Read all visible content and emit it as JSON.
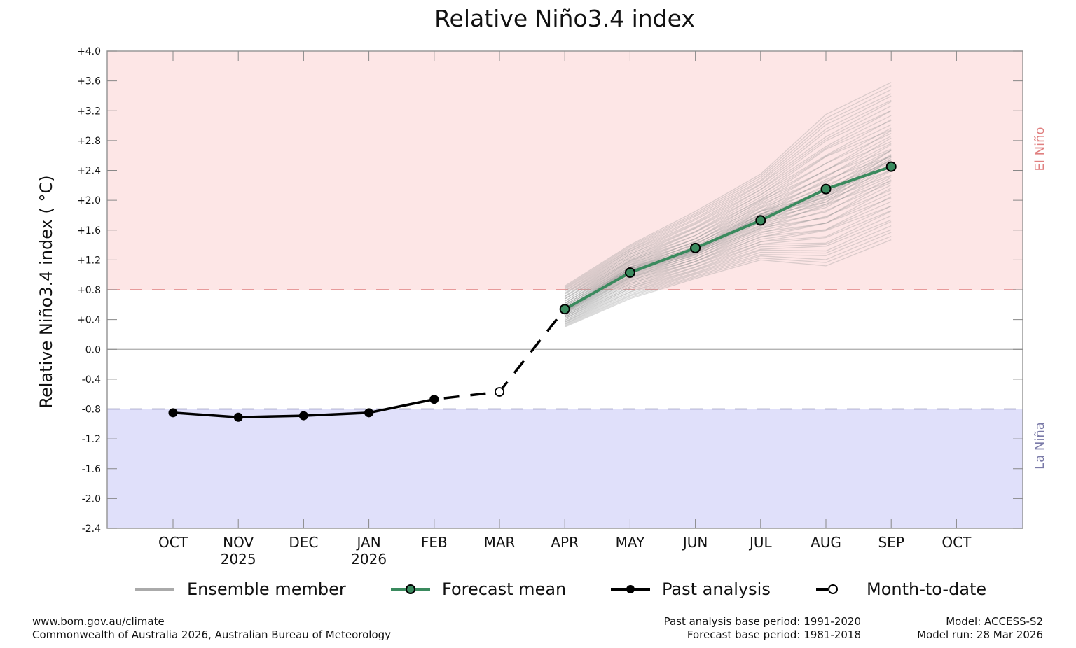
{
  "chart_data": {
    "type": "line",
    "title": "Relative Niño3.4 index",
    "ylabel": "Relative Niño3.4 index ( °C)",
    "ylim": [
      -2.4,
      4.0
    ],
    "yticks": [
      "+4.0",
      "+3.6",
      "+3.2",
      "+2.8",
      "+2.4",
      "+2.0",
      "+1.6",
      "+1.2",
      "+0.8",
      "+0.4",
      "0.0",
      "-0.4",
      "-0.8",
      "-1.2",
      "-1.6",
      "-2.0",
      "-2.4"
    ],
    "ytick_values": [
      4.0,
      3.6,
      3.2,
      2.8,
      2.4,
      2.0,
      1.6,
      1.2,
      0.8,
      0.4,
      0.0,
      -0.4,
      -0.8,
      -1.2,
      -1.6,
      -2.0,
      -2.4
    ],
    "categories": [
      "OCT",
      "NOV",
      "DEC",
      "JAN",
      "FEB",
      "MAR",
      "APR",
      "MAY",
      "JUN",
      "JUL",
      "AUG",
      "SEP",
      "OCT"
    ],
    "year_labels": {
      "NOV": "2025",
      "JAN": "2026"
    },
    "thresholds": {
      "el_nino": {
        "value": 0.8,
        "label": "El Niño",
        "color": "#e08080",
        "fill": "#fde6e6"
      },
      "la_nina": {
        "value": -0.8,
        "label": "La Niña",
        "color": "#7a7aa8",
        "fill": "#e0e0fa"
      }
    },
    "series": [
      {
        "name": "Past analysis",
        "color": "#000000",
        "x": [
          "OCT",
          "NOV",
          "DEC",
          "JAN",
          "FEB"
        ],
        "values": [
          -0.85,
          -0.91,
          -0.89,
          -0.85,
          -0.67
        ]
      },
      {
        "name": "Month-to-date",
        "color": "#000000",
        "x": [
          "MAR"
        ],
        "values": [
          -0.57
        ]
      },
      {
        "name": "Forecast mean",
        "color": "#3a8a5e",
        "x": [
          "APR",
          "MAY",
          "JUN",
          "JUL",
          "AUG",
          "SEP"
        ],
        "values": [
          0.54,
          1.03,
          1.36,
          1.73,
          2.15,
          2.45
        ]
      },
      {
        "name": "Ensemble member",
        "color": "#aaaaaa",
        "x": [
          "APR",
          "MAY",
          "JUN",
          "JUL",
          "AUG",
          "SEP"
        ],
        "min": [
          0.3,
          0.68,
          0.95,
          1.2,
          1.12,
          1.47
        ],
        "max": [
          0.85,
          1.4,
          1.85,
          2.35,
          3.15,
          3.58
        ]
      }
    ],
    "grid": false,
    "legend": "bottom"
  },
  "legend": {
    "ensemble": "Ensemble member",
    "forecast": "Forecast mean",
    "past": "Past analysis",
    "mtd": "Month-to-date"
  },
  "footer": {
    "url": "www.bom.gov.au/climate",
    "copyright": "Commonwealth of Australia 2026, Australian Bureau of Meteorology",
    "past_base": "Past analysis base period: 1991-2020",
    "forecast_base": "Forecast base period: 1981-2018",
    "model": "Model: ACCESS-S2",
    "model_run": "Model run: 28 Mar 2026"
  }
}
